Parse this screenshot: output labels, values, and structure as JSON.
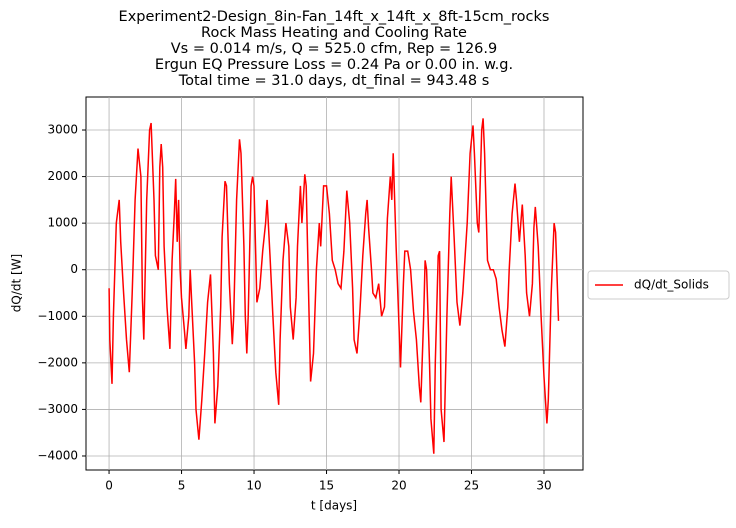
{
  "chart_data": {
    "type": "line",
    "title": [
      "Experiment2-Design_8in-Fan_14ft_x_14ft_x_8ft-15cm_rocks",
      "Rock Mass Heating and Cooling Rate",
      "Vs = 0.014 m/s, Q = 525.0 cfm, Rep = 126.9",
      "Ergun EQ Pressure Loss = 0.24 Pa or 0.00 in. w.g.",
      "Total time = 31.0 days, dt_final = 943.48 s"
    ],
    "xlabel": "t [days]",
    "ylabel": "dQ/dt [W]",
    "xlim": [
      -1.59,
      32.69
    ],
    "ylim": [
      -4301,
      3709
    ],
    "xticks": [
      0,
      5,
      10,
      15,
      20,
      25,
      30
    ],
    "yticks": [
      {
        "value": -4000,
        "label": "−4000"
      },
      {
        "value": -3000,
        "label": "−3000"
      },
      {
        "value": -2000,
        "label": "−2000"
      },
      {
        "value": -1000,
        "label": "−1000"
      },
      0,
      1000,
      2000,
      3000
    ],
    "grid": true,
    "legend_position": "right",
    "x": [
      0,
      0.05,
      0.2,
      0.3,
      0.5,
      0.7,
      0.8,
      1.0,
      1.2,
      1.4,
      1.6,
      1.8,
      2.0,
      2.2,
      2.3,
      2.4,
      2.6,
      2.8,
      2.9,
      3.1,
      3.2,
      3.4,
      3.5,
      3.6,
      3.7,
      3.8,
      4.0,
      4.2,
      4.35,
      4.5,
      4.6,
      4.7,
      4.8,
      4.9,
      5.0,
      5.2,
      5.3,
      5.5,
      5.6,
      5.7,
      5.9,
      6.0,
      6.2,
      6.4,
      6.6,
      6.8,
      7.0,
      7.2,
      7.3,
      7.5,
      7.7,
      7.8,
      8.0,
      8.1,
      8.3,
      8.5,
      8.6,
      8.8,
      9.0,
      9.1,
      9.3,
      9.4,
      9.5,
      9.6,
      9.8,
      9.9,
      10.0,
      10.2,
      10.4,
      10.6,
      10.8,
      10.9,
      11.1,
      11.3,
      11.5,
      11.7,
      11.8,
      12.0,
      12.2,
      12.4,
      12.5,
      12.7,
      12.9,
      13.0,
      13.2,
      13.3,
      13.5,
      13.6,
      13.8,
      13.9,
      14.1,
      14.3,
      14.5,
      14.6,
      14.8,
      15.0,
      15.2,
      15.4,
      15.6,
      15.8,
      16.0,
      16.2,
      16.4,
      16.6,
      16.8,
      16.9,
      17.1,
      17.3,
      17.5,
      17.7,
      17.8,
      17.9,
      18.1,
      18.2,
      18.4,
      18.6,
      18.8,
      19.0,
      19.2,
      19.4,
      19.5,
      19.6,
      19.8,
      20.0,
      20.1,
      20.3,
      20.4,
      20.6,
      20.8,
      21.0,
      21.2,
      21.4,
      21.5,
      21.7,
      21.8,
      21.9,
      22.1,
      22.2,
      22.4,
      22.5,
      22.7,
      22.8,
      22.9,
      23.1,
      23.3,
      23.5,
      23.6,
      23.8,
      24.0,
      24.2,
      24.4,
      24.7,
      24.9,
      25.1,
      25.2,
      25.4,
      25.5,
      25.7,
      25.8,
      25.9,
      26.1,
      26.3,
      26.5,
      26.7,
      26.9,
      27.1,
      27.3,
      27.5,
      27.6,
      27.8,
      28.0,
      28.1,
      28.3,
      28.4,
      28.5,
      28.7,
      28.8,
      29.0,
      29.2,
      29.3,
      29.4,
      29.6,
      29.8,
      30.0,
      30.2,
      30.3,
      30.5,
      30.7,
      30.8,
      31.0
    ],
    "series": [
      {
        "name": "dQ/dt_Solids",
        "color": "#ff0000",
        "values": [
          -400,
          -1500,
          -2450,
          -1000,
          1000,
          1500,
          600,
          -500,
          -1500,
          -2200,
          -500,
          1500,
          2600,
          2000,
          -600,
          -1500,
          1500,
          3000,
          3150,
          1500,
          300,
          0,
          2200,
          2700,
          2200,
          500,
          -800,
          -1700,
          200,
          1200,
          1950,
          600,
          1500,
          0,
          -600,
          -1300,
          -1700,
          -1000,
          0,
          -700,
          -2000,
          -3000,
          -3650,
          -2800,
          -1800,
          -700,
          -100,
          -1800,
          -3300,
          -2500,
          -800,
          700,
          1900,
          1800,
          -300,
          -1600,
          -1000,
          1500,
          2800,
          2500,
          500,
          -1000,
          -1800,
          -1000,
          1800,
          2000,
          1800,
          -700,
          -400,
          400,
          1000,
          1500,
          300,
          -1000,
          -2200,
          -2900,
          -1500,
          200,
          1000,
          500,
          -800,
          -1500,
          -600,
          500,
          1800,
          1000,
          2050,
          1800,
          -1000,
          -2400,
          -1800,
          0,
          1000,
          500,
          1800,
          1800,
          1200,
          200,
          0,
          -300,
          -400,
          400,
          1700,
          1000,
          -400,
          -1500,
          -1800,
          -900,
          300,
          1200,
          1500,
          900,
          0,
          -500,
          -600,
          -300,
          -1000,
          -800,
          1100,
          2000,
          1500,
          2500,
          500,
          -1200,
          -2100,
          -300,
          400,
          400,
          0,
          -900,
          -1500,
          -2500,
          -2850,
          -1000,
          200,
          0,
          -2000,
          -3200,
          -3950,
          -2000,
          300,
          400,
          -3000,
          -3700,
          -1000,
          1200,
          2000,
          700,
          -700,
          -1200,
          -500,
          1000,
          2500,
          3100,
          2500,
          1000,
          800,
          3000,
          3250,
          2500,
          200,
          0,
          0,
          -200,
          -800,
          -1300,
          -1650,
          -800,
          0,
          1200,
          1850,
          1500,
          600,
          1000,
          1400,
          300,
          -500,
          -1000,
          -300,
          900,
          1350,
          500,
          -1000,
          -2300,
          -3300,
          -2800,
          -500,
          1000,
          800,
          -1100
        ]
      }
    ]
  }
}
